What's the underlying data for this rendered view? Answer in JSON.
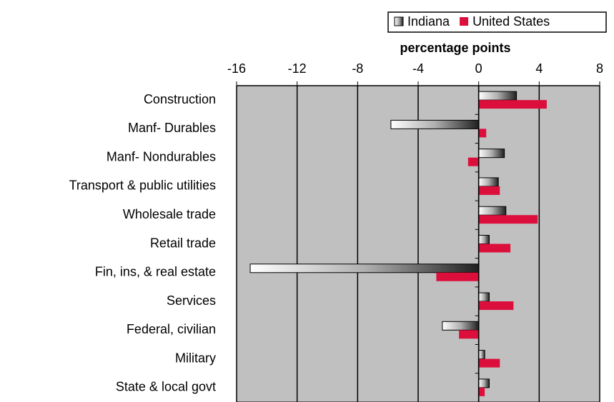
{
  "chart_data": {
    "type": "hbar",
    "x_label": "percentage points",
    "categories": [
      "Construction",
      "Manf- Durables",
      "Manf- Nondurables",
      "Transport & public utilities",
      "Wholesale trade",
      "Retail trade",
      "Fin, ins, & real estate",
      "Services",
      "Federal, civilian",
      "Military",
      "State & local govt"
    ],
    "series": [
      {
        "name": "Indiana",
        "color": "#808080",
        "values": [
          2.5,
          -5.8,
          1.7,
          1.3,
          1.8,
          0.7,
          -15.1,
          0.7,
          -2.4,
          0.4,
          0.7
        ]
      },
      {
        "name": "United States",
        "color": "#dc0f3c",
        "values": [
          4.5,
          0.5,
          -0.7,
          1.4,
          3.9,
          2.1,
          -2.8,
          2.3,
          -1.3,
          1.4,
          0.4
        ]
      }
    ],
    "xlim": [
      -16,
      8
    ],
    "xticks": [
      -16,
      -12,
      -8,
      -4,
      0,
      4,
      8
    ],
    "grid": true,
    "legend": "top-right",
    "plot_background": "#c0c0c0"
  }
}
